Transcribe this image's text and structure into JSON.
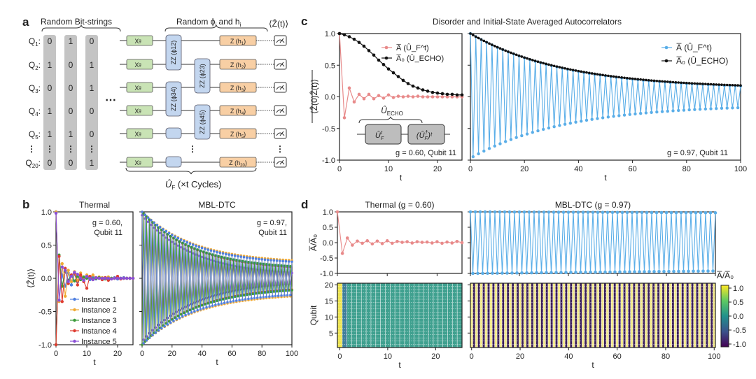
{
  "panel_labels": {
    "a": "a",
    "b": "b",
    "c": "c",
    "d": "d"
  },
  "panel_a": {
    "bitstrings_title": "Random Bit-strings",
    "params_title": "Random ϕ",
    "params_sub_i": "i",
    "params_and": " and h",
    "params_sub_i2": "i",
    "measure_label": "⟨Ẑ(t)⟩",
    "qubits": [
      {
        "name": "Q",
        "sub": "1",
        "bits": [
          "0",
          "1",
          "0"
        ],
        "z_gate": "Z (h",
        "z_sub": "1"
      },
      {
        "name": "Q",
        "sub": "2",
        "bits": [
          "1",
          "0",
          "1"
        ],
        "z_gate": "Z (h",
        "z_sub": "2"
      },
      {
        "name": "Q",
        "sub": "3",
        "bits": [
          "0",
          "0",
          "1"
        ],
        "z_gate": "Z (h",
        "z_sub": "3"
      },
      {
        "name": "Q",
        "sub": "4",
        "bits": [
          "1",
          "0",
          "0"
        ],
        "z_gate": "Z (h",
        "z_sub": "4"
      },
      {
        "name": "Q",
        "sub": "5",
        "bits": [
          "1",
          "1",
          "0"
        ],
        "z_gate": "Z (h",
        "z_sub": "5"
      },
      {
        "name": "Q",
        "sub": "20",
        "bits": [
          "0",
          "0",
          "1"
        ],
        "z_gate": "Z (h",
        "z_sub": "20"
      }
    ],
    "x_gate": "X",
    "x_gate_sup": "g",
    "zz_gates": [
      "ZZ (ϕ12)",
      "ZZ (ϕ23)",
      "ZZ (ϕ34)",
      "ZZ (ϕ45)"
    ],
    "ellipsis": "⋯",
    "vdots": "⋮",
    "uf_label": "Û",
    "uf_sub": "F",
    "uf_cycles": " (×t Cycles)",
    "colors": {
      "x_gate": "#c9e3b5",
      "zz_gate": "#c3d6ef",
      "z_gate": "#f8cfa4",
      "bit_column": "#c4c4c4"
    }
  },
  "panel_c_title": "Disorder and Initial-State Averaged Autocorrelators",
  "echo_inset": {
    "label": "Û",
    "label_sub": "ECHO",
    "box1": "Û",
    "box1_sub": "F",
    "box1_sup": "t",
    "box2": "(Û",
    "box2_sub": "F",
    "box2_sup": "†",
    "box2_tail": ")ᵗ"
  },
  "chart_data": [
    {
      "id": "b-thermal",
      "type": "line",
      "title": "Thermal",
      "xlabel": "t",
      "ylabel": "⟨Ẑ(t)⟩",
      "xlim": [
        0,
        25
      ],
      "ylim": [
        -1.0,
        1.0
      ],
      "xticks": [
        "0",
        "10",
        "20"
      ],
      "yticks": [
        "-1.0",
        "-0.5",
        "0.0",
        "0.5",
        "1.0"
      ],
      "annotation": [
        "g = 0.60,",
        "Qubit 11"
      ],
      "legend_position": "bottom-right",
      "series": [
        {
          "name": "Instance 1",
          "color": "#4f7fe0",
          "x": [
            0,
            1,
            2,
            3,
            4,
            5,
            6,
            7,
            8,
            9,
            10,
            11,
            12,
            13,
            14,
            15,
            16,
            17,
            18,
            19,
            20,
            21,
            22,
            23,
            24,
            25
          ],
          "y": [
            1.0,
            -0.33,
            0.05,
            -0.12,
            0.08,
            -0.1,
            0.06,
            -0.05,
            0.04,
            -0.03,
            0.02,
            -0.02,
            0.02,
            -0.01,
            0.01,
            -0.02,
            0.01,
            -0.01,
            0.0,
            0.01,
            -0.01,
            0.0,
            0.01,
            0.0,
            0.0,
            0.0
          ]
        },
        {
          "name": "Instance 2",
          "color": "#f0aa35",
          "x": [
            0,
            1,
            2,
            3,
            4,
            5,
            6,
            7,
            8,
            9,
            10,
            11,
            12,
            13,
            14,
            15,
            16,
            17,
            18,
            19,
            20,
            21,
            22,
            23,
            24,
            25
          ],
          "y": [
            1.0,
            -0.35,
            0.22,
            -0.27,
            0.12,
            -0.05,
            0.1,
            -0.03,
            0.08,
            -0.02,
            0.05,
            0.01,
            0.05,
            0.0,
            0.02,
            0.01,
            0.0,
            0.02,
            0.0,
            0.0,
            0.01,
            0.0,
            0.0,
            0.0,
            0.0,
            0.0
          ]
        },
        {
          "name": "Instance 3",
          "color": "#3a9a3a",
          "x": [
            0,
            1,
            2,
            3,
            4,
            5,
            6,
            7,
            8,
            9,
            10,
            11,
            12,
            13,
            14,
            15,
            16,
            17,
            18,
            19,
            20,
            21,
            22,
            23,
            24,
            25
          ],
          "y": [
            -1.0,
            0.35,
            -0.12,
            0.1,
            -0.03,
            0.05,
            -0.04,
            0.03,
            -0.02,
            0.02,
            0.0,
            0.01,
            -0.01,
            0.0,
            0.01,
            0.0,
            -0.01,
            0.0,
            0.0,
            0.0,
            0.0,
            0.0,
            0.0,
            0.0,
            0.0,
            0.0
          ]
        },
        {
          "name": "Instance 4",
          "color": "#de3b30",
          "x": [
            0,
            1,
            2,
            3,
            4,
            5,
            6,
            7,
            8,
            9,
            10,
            11,
            12,
            13,
            14,
            15,
            16,
            17,
            18,
            19,
            20,
            21,
            22,
            23,
            24,
            25
          ],
          "y": [
            -1.0,
            0.33,
            -0.35,
            0.15,
            -0.08,
            0.05,
            0.08,
            -0.1,
            0.05,
            -0.05,
            -0.15,
            0.03,
            -0.02,
            0.01,
            0.0,
            -0.02,
            0.01,
            -0.03,
            -0.01,
            0.0,
            0.03,
            -0.01,
            0.0,
            0.0,
            0.0,
            0.0
          ]
        },
        {
          "name": "Instance 5",
          "color": "#8a4fd6",
          "x": [
            0,
            1,
            2,
            3,
            4,
            5,
            6,
            7,
            8,
            9,
            10,
            11,
            12,
            13,
            14,
            15,
            16,
            17,
            18,
            19,
            20,
            21,
            22,
            23,
            24,
            25
          ],
          "y": [
            0.98,
            -0.33,
            0.17,
            0.12,
            -0.05,
            0.03,
            0.09,
            0.06,
            0.0,
            -0.03,
            0.03,
            0.0,
            -0.02,
            0.01,
            0.0,
            0.0,
            0.0,
            0.0,
            -0.01,
            0.0,
            0.0,
            0.0,
            0.0,
            0.0,
            0.0,
            0.0
          ]
        }
      ]
    },
    {
      "id": "b-mbl",
      "type": "line",
      "title": "MBL-DTC",
      "xlabel": "t",
      "xlim": [
        0,
        100
      ],
      "ylim": [
        -1.0,
        1.0
      ],
      "xticks": [
        "0",
        "20",
        "40",
        "60",
        "80",
        "100"
      ],
      "annotation": [
        "g = 0.97,",
        "Qubit 11"
      ],
      "note": "Each instance alternates sign every cycle; envelope amplitude decays from 1.0 at t=0 to the value below at t=100",
      "series": [
        {
          "name": "Instance 1",
          "color": "#4f7fe0",
          "envelope_start": 1.0,
          "envelope_end": 0.25,
          "y0_sign": 1
        },
        {
          "name": "Instance 2",
          "color": "#f0aa35",
          "envelope_start": 1.0,
          "envelope_end": 0.27,
          "y0_sign": 1
        },
        {
          "name": "Instance 3",
          "color": "#3a9a3a",
          "envelope_start": 1.0,
          "envelope_end": 0.18,
          "y0_sign": -1
        },
        {
          "name": "Instance 4",
          "color": "#de3b30",
          "envelope_start": 1.0,
          "envelope_end": 0.17,
          "y0_sign": -1
        },
        {
          "name": "Instance 5",
          "color": "#8a4fd6",
          "envelope_start": 0.95,
          "envelope_end": 0.08,
          "y0_sign": 1
        }
      ]
    },
    {
      "id": "c-thermal",
      "type": "line",
      "xlabel": "t",
      "ylabel": "⟨Ẑ(0)Ẑ(t)⟩",
      "xlim": [
        0,
        25
      ],
      "ylim": [
        -1.0,
        1.0
      ],
      "xticks": [
        "0",
        "10",
        "20"
      ],
      "yticks": [
        "-1.0",
        "-0.5",
        "0.0",
        "0.5",
        "1.0"
      ],
      "annotation": "g = 0.60, Qubit 11",
      "legend_position": "top-right",
      "series": [
        {
          "name": "A̅ (Û_F^t)",
          "color": "#e88a8a",
          "x": [
            0,
            1,
            2,
            3,
            4,
            5,
            6,
            7,
            8,
            9,
            10,
            11,
            12,
            13,
            14,
            15,
            16,
            17,
            18,
            19,
            20,
            21,
            22,
            23,
            24,
            25
          ],
          "y": [
            1.0,
            -0.33,
            0.14,
            -0.08,
            0.04,
            -0.03,
            0.04,
            -0.03,
            0.02,
            -0.02,
            0.03,
            -0.01,
            0.01,
            0.0,
            0.01,
            0.0,
            0.01,
            0.0,
            0.0,
            0.0,
            0.0,
            0.0,
            0.0,
            0.0,
            0.0,
            0.0
          ]
        },
        {
          "name": "A̅₀ (Û_ECHO)",
          "color": "#111111",
          "x": [
            0,
            1,
            2,
            3,
            4,
            5,
            6,
            7,
            8,
            9,
            10,
            11,
            12,
            13,
            14,
            15,
            16,
            17,
            18,
            19,
            20,
            21,
            22,
            23,
            24,
            25
          ],
          "y": [
            1.0,
            0.98,
            0.95,
            0.91,
            0.86,
            0.8,
            0.73,
            0.66,
            0.58,
            0.51,
            0.44,
            0.38,
            0.32,
            0.26,
            0.21,
            0.17,
            0.14,
            0.11,
            0.09,
            0.07,
            0.06,
            0.05,
            0.04,
            0.04,
            0.03,
            0.03
          ]
        }
      ]
    },
    {
      "id": "c-mbl",
      "type": "line",
      "xlabel": "t",
      "xlim": [
        0,
        100
      ],
      "ylim": [
        -1.0,
        1.0
      ],
      "xticks": [
        "0",
        "20",
        "40",
        "60",
        "80",
        "100"
      ],
      "annotation": "g = 0.97, Qubit 11",
      "legend_position": "top-right",
      "series": [
        {
          "name": "A̅ (Û_F^t)",
          "color": "#5aaee8",
          "envelope_start": 1.0,
          "envelope_end": 0.17,
          "alternating": true
        },
        {
          "name": "A̅₀ (Û_ECHO)",
          "color": "#111111",
          "envelope_start": 1.0,
          "envelope_end": 0.18,
          "alternating": false
        }
      ]
    },
    {
      "id": "d-thermal-line",
      "type": "line",
      "title": "Thermal (g = 0.60)",
      "ylabel": "A̅/A̅₀",
      "xlim": [
        0,
        25
      ],
      "ylim": [
        -1.0,
        1.0
      ],
      "yticks": [
        "-1.0",
        "-0.5",
        "0.0",
        "0.5",
        "1.0"
      ],
      "series": [
        {
          "name": "A̅/A̅₀",
          "color": "#e88a8a",
          "x": [
            0,
            1,
            2,
            3,
            4,
            5,
            6,
            7,
            8,
            9,
            10,
            11,
            12,
            13,
            14,
            15,
            16,
            17,
            18,
            19,
            20,
            21,
            22,
            23,
            24,
            25
          ],
          "y": [
            1.0,
            -0.35,
            0.15,
            -0.08,
            0.05,
            -0.02,
            0.06,
            -0.04,
            0.05,
            -0.03,
            0.06,
            -0.02,
            0.04,
            0.01,
            0.03,
            -0.01,
            0.03,
            0.01,
            0.02,
            -0.01,
            0.03,
            -0.02,
            0.02,
            -0.01,
            0.04,
            0.0
          ]
        }
      ]
    },
    {
      "id": "d-mbl-line",
      "type": "line",
      "title": "MBL-DTC (g = 0.97)",
      "xlim": [
        0,
        100
      ],
      "ylim": [
        -1.0,
        1.0
      ],
      "series": [
        {
          "name": "A̅/A̅₀",
          "color": "#5aaee8",
          "envelope_start": 1.0,
          "envelope_end": 0.92,
          "alternating": true
        }
      ]
    },
    {
      "id": "d-thermal-heatmap",
      "type": "heatmap",
      "xlabel": "t",
      "ylabel": "Qubit",
      "xlim": [
        0,
        25
      ],
      "ylim": [
        1,
        20
      ],
      "xticks": [
        "0",
        "10",
        "20"
      ],
      "yticks": [
        "5",
        "10",
        "15",
        "20"
      ],
      "description": "t=0 column = 1.0 (yellow), t=1 ≈ -0.35, t≥2 ≈ 0.0 (teal) for all qubits"
    },
    {
      "id": "d-mbl-heatmap",
      "type": "heatmap",
      "xlabel": "t",
      "xlim": [
        0,
        100
      ],
      "ylim": [
        1,
        20
      ],
      "xticks": [
        "0",
        "20",
        "40",
        "60",
        "80",
        "100"
      ],
      "description": "Alternating columns +1.0 (yellow) at even t and -1.0 (purple) at odd t for all qubits",
      "colorbar": {
        "label": "A̅/A̅₀",
        "ticks": [
          "1.0",
          "0.5",
          "0.0",
          "-0.5",
          "-1.0"
        ],
        "range": [
          -1.0,
          1.0
        ],
        "colormap": "viridis"
      }
    }
  ]
}
